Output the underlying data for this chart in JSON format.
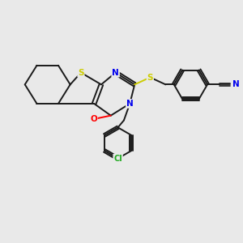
{
  "bg_color": "#e9e9e9",
  "bond_color": "#1a1a1a",
  "bond_width": 1.4,
  "atom_colors": {
    "S": "#cccc00",
    "N": "#0000ee",
    "O": "#ff0000",
    "Cl": "#22aa22",
    "C": "#1a1a1a"
  },
  "figsize": [
    3.0,
    3.0
  ],
  "dpi": 100
}
